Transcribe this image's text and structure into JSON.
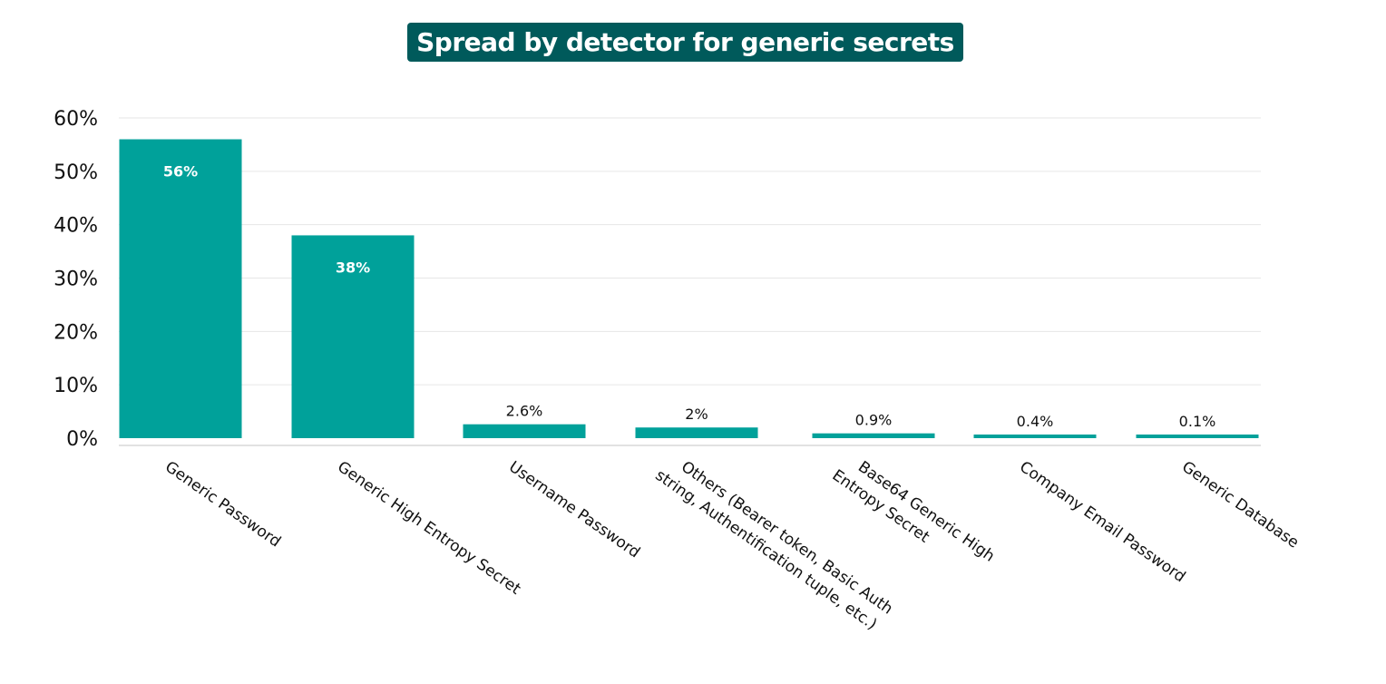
{
  "chart_data": {
    "type": "bar",
    "title": "Spread by detector for generic secrets",
    "categories": [
      "Generic Password",
      "Generic High Entropy Secret",
      "Username Password",
      "Others (Bearer token, Basic Auth string, Authentification tuple, etc.)",
      "Base64 Generic High Entropy Secret",
      "Company Email Password",
      "Generic Database"
    ],
    "category_lines": [
      [
        "Generic Password"
      ],
      [
        "Generic High Entropy Secret"
      ],
      [
        "Username Password"
      ],
      [
        "Others (Bearer token, Basic Auth",
        "string, Authentification tuple, etc.)"
      ],
      [
        "Base64 Generic High",
        "Entropy Secret"
      ],
      [
        "Company Email Password"
      ],
      [
        "Generic Database"
      ]
    ],
    "values": [
      56,
      38,
      2.6,
      2,
      0.9,
      0.4,
      0.1
    ],
    "data_labels": [
      "56%",
      "38%",
      "2.6%",
      "2%",
      "0.9%",
      "0.4%",
      "0.1%"
    ],
    "y_ticks": [
      0,
      10,
      20,
      30,
      40,
      50,
      60
    ],
    "y_tick_labels": [
      "0%",
      "10%",
      "20%",
      "30%",
      "40%",
      "50%",
      "60%"
    ],
    "ylim": [
      0,
      60
    ],
    "xlabel": "",
    "ylabel": "",
    "grid": true,
    "legend": "none",
    "colors": {
      "bar": "#00a19a",
      "title_bg": "#005a5b",
      "title_text": "#ffffff",
      "grid": "#e6e6e6",
      "axis": "#d9d9d9"
    }
  }
}
